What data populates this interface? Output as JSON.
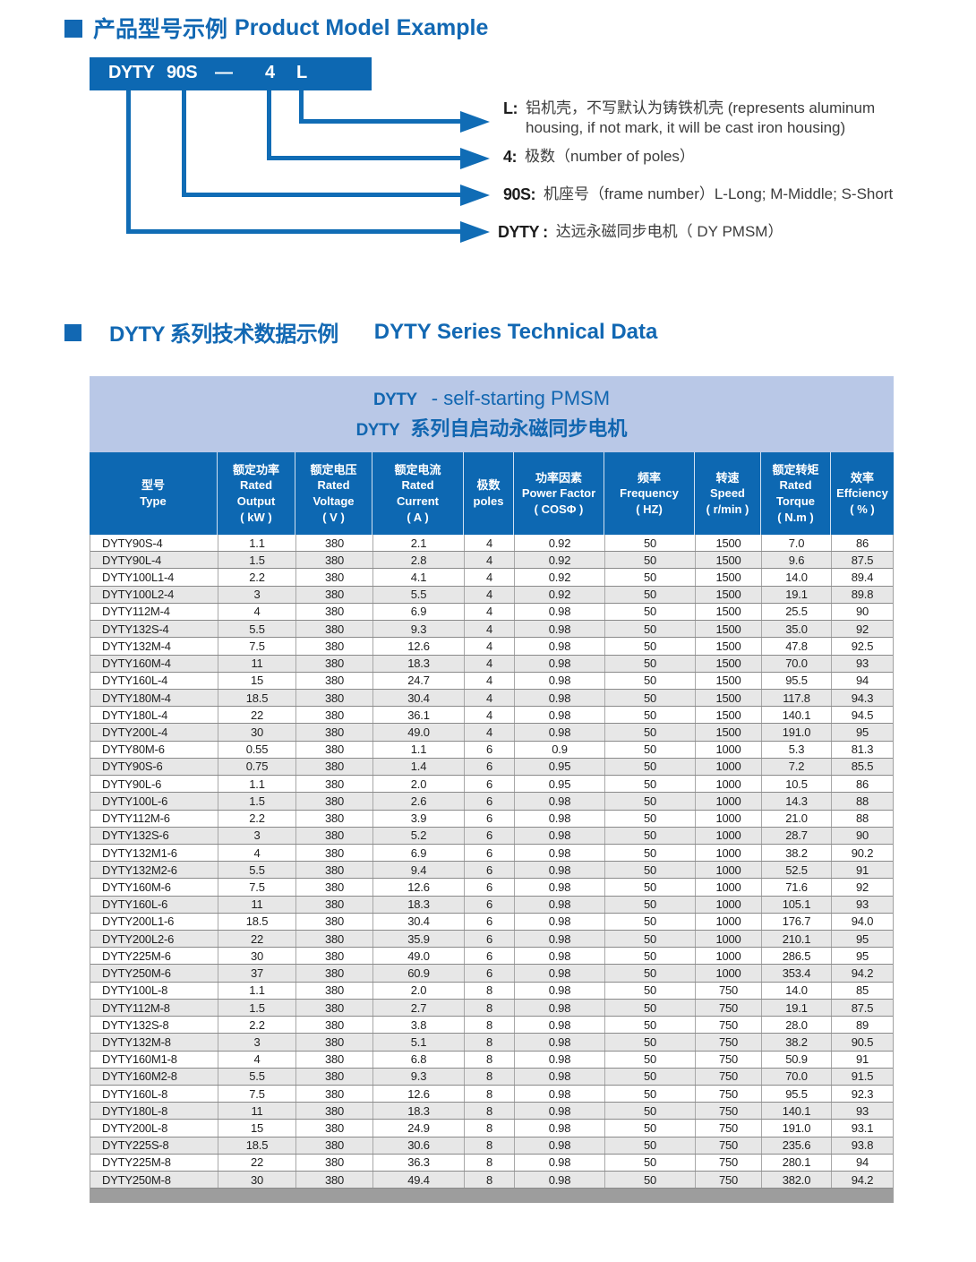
{
  "section1": {
    "heading_zh": "产品型号示例",
    "heading_en": "Product Model Example",
    "model_box": {
      "parts": [
        "DYTY",
        "90S",
        "—",
        "4",
        "L"
      ]
    },
    "legend": [
      {
        "label": "L:",
        "text": "铝机壳，不写默认为铸铁机壳 (represents aluminum housing, if not mark, it will be cast iron housing)"
      },
      {
        "label": "4:",
        "text": "极数（number of poles）"
      },
      {
        "label": "90S:",
        "text": "机座号（frame number）L-Long; M-Middle; S-Short"
      },
      {
        "label": "DYTY :",
        "text": "达远永磁同步电机（ DY  PMSM）"
      }
    ]
  },
  "section2": {
    "heading_zh": "DYTY 系列技术数据示例",
    "heading_en": "DYTY Series Technical Data"
  },
  "table": {
    "title_line1_code": "DYTY",
    "title_line1_rest": "-  self-starting PMSM",
    "title_line2_code": "DYTY",
    "title_line2_rest": "系列自启动永磁同步电机",
    "headers": [
      [
        "型号",
        "Type"
      ],
      [
        "额定功率",
        "Rated",
        "Output",
        "( kW )"
      ],
      [
        "额定电压",
        "Rated",
        "Voltage",
        "( V )"
      ],
      [
        "额定电流",
        "Rated",
        "Current",
        "( A )"
      ],
      [
        "极数",
        "poles"
      ],
      [
        "功率因素",
        "Power Factor",
        "( COSΦ )"
      ],
      [
        "频率",
        "Frequency",
        "( HZ)"
      ],
      [
        "转速",
        "Speed",
        "( r/min )"
      ],
      [
        "额定转矩",
        "Rated",
        "Torque",
        "( N.m )"
      ],
      [
        "效率",
        "Effciency",
        "( % )"
      ]
    ],
    "rows": [
      [
        "DYTY90S-4",
        "1.1",
        "380",
        "2.1",
        "4",
        "0.92",
        "50",
        "1500",
        "7.0",
        "86"
      ],
      [
        "DYTY90L-4",
        "1.5",
        "380",
        "2.8",
        "4",
        "0.92",
        "50",
        "1500",
        "9.6",
        "87.5"
      ],
      [
        "DYTY100L1-4",
        "2.2",
        "380",
        "4.1",
        "4",
        "0.92",
        "50",
        "1500",
        "14.0",
        "89.4"
      ],
      [
        "DYTY100L2-4",
        "3",
        "380",
        "5.5",
        "4",
        "0.92",
        "50",
        "1500",
        "19.1",
        "89.8"
      ],
      [
        "DYTY112M-4",
        "4",
        "380",
        "6.9",
        "4",
        "0.98",
        "50",
        "1500",
        "25.5",
        "90"
      ],
      [
        "DYTY132S-4",
        "5.5",
        "380",
        "9.3",
        "4",
        "0.98",
        "50",
        "1500",
        "35.0",
        "92"
      ],
      [
        "DYTY132M-4",
        "7.5",
        "380",
        "12.6",
        "4",
        "0.98",
        "50",
        "1500",
        "47.8",
        "92.5"
      ],
      [
        "DYTY160M-4",
        "11",
        "380",
        "18.3",
        "4",
        "0.98",
        "50",
        "1500",
        "70.0",
        "93"
      ],
      [
        "DYTY160L-4",
        "15",
        "380",
        "24.7",
        "4",
        "0.98",
        "50",
        "1500",
        "95.5",
        "94"
      ],
      [
        "DYTY180M-4",
        "18.5",
        "380",
        "30.4",
        "4",
        "0.98",
        "50",
        "1500",
        "117.8",
        "94.3"
      ],
      [
        "DYTY180L-4",
        "22",
        "380",
        "36.1",
        "4",
        "0.98",
        "50",
        "1500",
        "140.1",
        "94.5"
      ],
      [
        "DYTY200L-4",
        "30",
        "380",
        "49.0",
        "4",
        "0.98",
        "50",
        "1500",
        "191.0",
        "95"
      ],
      [
        "DYTY80M-6",
        "0.55",
        "380",
        "1.1",
        "6",
        "0.9",
        "50",
        "1000",
        "5.3",
        "81.3"
      ],
      [
        "DYTY90S-6",
        "0.75",
        "380",
        "1.4",
        "6",
        "0.95",
        "50",
        "1000",
        "7.2",
        "85.5"
      ],
      [
        "DYTY90L-6",
        "1.1",
        "380",
        "2.0",
        "6",
        "0.95",
        "50",
        "1000",
        "10.5",
        "86"
      ],
      [
        "DYTY100L-6",
        "1.5",
        "380",
        "2.6",
        "6",
        "0.98",
        "50",
        "1000",
        "14.3",
        "88"
      ],
      [
        "DYTY112M-6",
        "2.2",
        "380",
        "3.9",
        "6",
        "0.98",
        "50",
        "1000",
        "21.0",
        "88"
      ],
      [
        "DYTY132S-6",
        "3",
        "380",
        "5.2",
        "6",
        "0.98",
        "50",
        "1000",
        "28.7",
        "90"
      ],
      [
        "DYTY132M1-6",
        "4",
        "380",
        "6.9",
        "6",
        "0.98",
        "50",
        "1000",
        "38.2",
        "90.2"
      ],
      [
        "DYTY132M2-6",
        "5.5",
        "380",
        "9.4",
        "6",
        "0.98",
        "50",
        "1000",
        "52.5",
        "91"
      ],
      [
        "DYTY160M-6",
        "7.5",
        "380",
        "12.6",
        "6",
        "0.98",
        "50",
        "1000",
        "71.6",
        "92"
      ],
      [
        "DYTY160L-6",
        "11",
        "380",
        "18.3",
        "6",
        "0.98",
        "50",
        "1000",
        "105.1",
        "93"
      ],
      [
        "DYTY200L1-6",
        "18.5",
        "380",
        "30.4",
        "6",
        "0.98",
        "50",
        "1000",
        "176.7",
        "94.0"
      ],
      [
        "DYTY200L2-6",
        "22",
        "380",
        "35.9",
        "6",
        "0.98",
        "50",
        "1000",
        "210.1",
        "95"
      ],
      [
        "DYTY225M-6",
        "30",
        "380",
        "49.0",
        "6",
        "0.98",
        "50",
        "1000",
        "286.5",
        "95"
      ],
      [
        "DYTY250M-6",
        "37",
        "380",
        "60.9",
        "6",
        "0.98",
        "50",
        "1000",
        "353.4",
        "94.2"
      ],
      [
        "DYTY100L-8",
        "1.1",
        "380",
        "2.0",
        "8",
        "0.98",
        "50",
        "750",
        "14.0",
        "85"
      ],
      [
        "DYTY112M-8",
        "1.5",
        "380",
        "2.7",
        "8",
        "0.98",
        "50",
        "750",
        "19.1",
        "87.5"
      ],
      [
        "DYTY132S-8",
        "2.2",
        "380",
        "3.8",
        "8",
        "0.98",
        "50",
        "750",
        "28.0",
        "89"
      ],
      [
        "DYTY132M-8",
        "3",
        "380",
        "5.1",
        "8",
        "0.98",
        "50",
        "750",
        "38.2",
        "90.5"
      ],
      [
        "DYTY160M1-8",
        "4",
        "380",
        "6.8",
        "8",
        "0.98",
        "50",
        "750",
        "50.9",
        "91"
      ],
      [
        "DYTY160M2-8",
        "5.5",
        "380",
        "9.3",
        "8",
        "0.98",
        "50",
        "750",
        "70.0",
        "91.5"
      ],
      [
        "DYTY160L-8",
        "7.5",
        "380",
        "12.6",
        "8",
        "0.98",
        "50",
        "750",
        "95.5",
        "92.3"
      ],
      [
        "DYTY180L-8",
        "11",
        "380",
        "18.3",
        "8",
        "0.98",
        "50",
        "750",
        "140.1",
        "93"
      ],
      [
        "DYTY200L-8",
        "15",
        "380",
        "24.9",
        "8",
        "0.98",
        "50",
        "750",
        "191.0",
        "93.1"
      ],
      [
        "DYTY225S-8",
        "18.5",
        "380",
        "30.6",
        "8",
        "0.98",
        "50",
        "750",
        "235.6",
        "93.8"
      ],
      [
        "DYTY225M-8",
        "22",
        "380",
        "36.3",
        "8",
        "0.98",
        "50",
        "750",
        "280.1",
        "94"
      ],
      [
        "DYTY250M-8",
        "30",
        "380",
        "49.4",
        "8",
        "0.98",
        "50",
        "750",
        "382.0",
        "94.2"
      ]
    ]
  },
  "colors": {
    "heading_blue": "#1268b3",
    "header_blue": "#0d68b2",
    "title_band": "#b9c8e7",
    "alt_row_gray": "#e7e7e7",
    "footer_gray": "#9d9d9d",
    "connector_blue": "#106cb5"
  }
}
